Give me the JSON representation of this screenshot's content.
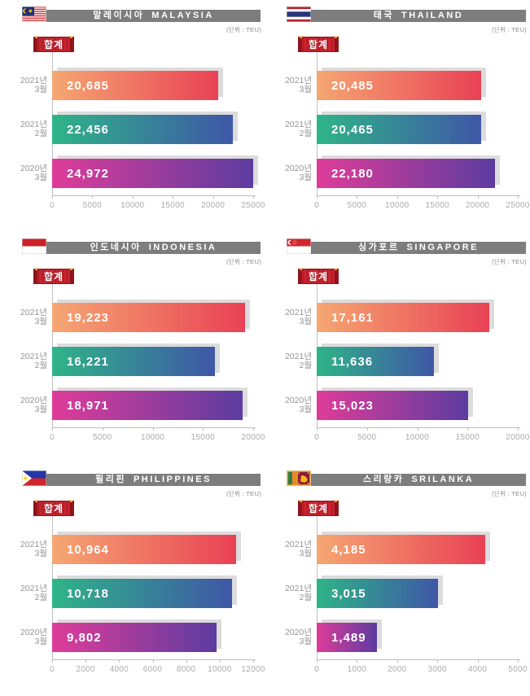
{
  "common": {
    "unit_label": "(단위 : TEU)",
    "total_label": "합계",
    "categories": [
      {
        "line1": "2021년",
        "line2": "3월"
      },
      {
        "line1": "2021년",
        "line2": "2월"
      },
      {
        "line1": "2020년",
        "line2": "3월"
      }
    ],
    "series_colors": [
      {
        "start": "#F5A772",
        "end": "#E94155"
      },
      {
        "start": "#2FB488",
        "end": "#3F57A7"
      },
      {
        "start": "#DF3C99",
        "end": "#5C3CA0"
      }
    ],
    "header_bg": "#7D7D7D",
    "badge_bg": "#C4232E",
    "badge_dot": "#F2C040",
    "shadow_color": "#DCDCDC",
    "axis_color": "#BFBFBF",
    "tick_label_color": "#ABABAB",
    "category_label_color": "#949494"
  },
  "chart_data": [
    {
      "type": "bar",
      "orientation": "horizontal",
      "title_ko": "말레이시아",
      "title_en": "MALAYSIA",
      "flag_icon": "malaysia-flag-icon",
      "categories": [
        "2021년 3월",
        "2021년 2월",
        "2020년 3월"
      ],
      "values": [
        20685,
        22456,
        24972
      ],
      "value_labels": [
        "20,685",
        "22,456",
        "24,972"
      ],
      "xlim": [
        0,
        25000
      ],
      "xtick_labels": [
        "0",
        "5000",
        "10000",
        "15000",
        "20000",
        "25000"
      ]
    },
    {
      "type": "bar",
      "orientation": "horizontal",
      "title_ko": "태국",
      "title_en": "THAILAND",
      "flag_icon": "thailand-flag-icon",
      "categories": [
        "2021년 3월",
        "2021년 2월",
        "2020년 3월"
      ],
      "values": [
        20485,
        20465,
        22180
      ],
      "value_labels": [
        "20,485",
        "20,465",
        "22,180"
      ],
      "xlim": [
        0,
        25000
      ],
      "xtick_labels": [
        "0",
        "5000",
        "10000",
        "15000",
        "20000",
        "25000"
      ]
    },
    {
      "type": "bar",
      "orientation": "horizontal",
      "title_ko": "인도네시아",
      "title_en": "INDONESIA",
      "flag_icon": "indonesia-flag-icon",
      "categories": [
        "2021년 3월",
        "2021년 2월",
        "2020년 3월"
      ],
      "values": [
        19223,
        16221,
        18971
      ],
      "value_labels": [
        "19,223",
        "16,221",
        "18,971"
      ],
      "xlim": [
        0,
        20000
      ],
      "xtick_labels": [
        "0",
        "5000",
        "10000",
        "15000",
        "20000"
      ]
    },
    {
      "type": "bar",
      "orientation": "horizontal",
      "title_ko": "싱가포르",
      "title_en": "SINGAPORE",
      "flag_icon": "singapore-flag-icon",
      "categories": [
        "2021년 3월",
        "2021년 2월",
        "2020년 3월"
      ],
      "values": [
        17161,
        11636,
        15023
      ],
      "value_labels": [
        "17,161",
        "11,636",
        "15,023"
      ],
      "xlim": [
        0,
        20000
      ],
      "xtick_labels": [
        "0",
        "5000",
        "10000",
        "15000",
        "20000"
      ]
    },
    {
      "type": "bar",
      "orientation": "horizontal",
      "title_ko": "필리핀",
      "title_en": "PHILIPPINES",
      "flag_icon": "philippines-flag-icon",
      "categories": [
        "2021년 3월",
        "2021년 2월",
        "2020년 3월"
      ],
      "values": [
        10964,
        10718,
        9802
      ],
      "value_labels": [
        "10,964",
        "10,718",
        "9,802"
      ],
      "xlim": [
        0,
        12000
      ],
      "xtick_labels": [
        "0",
        "2000",
        "4000",
        "6000",
        "8000",
        "10000",
        "12000"
      ]
    },
    {
      "type": "bar",
      "orientation": "horizontal",
      "title_ko": "스리랑카",
      "title_en": "SRILANKA",
      "flag_icon": "srilanka-flag-icon",
      "categories": [
        "2021년 3월",
        "2021년 2월",
        "2020년 3월"
      ],
      "values": [
        4185,
        3015,
        1489
      ],
      "value_labels": [
        "4,185",
        "3,015",
        "1,489"
      ],
      "xlim": [
        0,
        5000
      ],
      "xtick_labels": [
        "0",
        "1000",
        "2000",
        "3000",
        "4000",
        "5000"
      ]
    }
  ]
}
